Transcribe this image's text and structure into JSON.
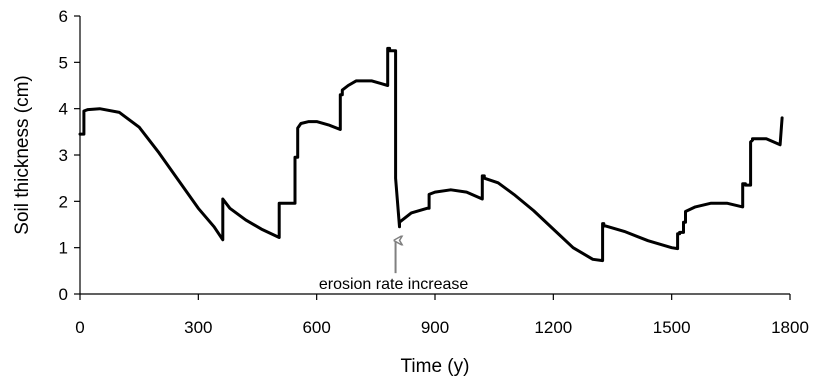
{
  "chart_data": {
    "type": "line",
    "title": "",
    "xlabel": "Time (y)",
    "ylabel": "Soil thickness (cm)",
    "xlim": [
      0,
      1800
    ],
    "ylim": [
      0,
      6
    ],
    "xticks": [
      0,
      300,
      600,
      900,
      1200,
      1500,
      1800
    ],
    "yticks": [
      0,
      1,
      2,
      3,
      4,
      5,
      6
    ],
    "grid": false,
    "legend": "none",
    "line_color": "#000000",
    "annotation": {
      "text": "erosion rate increase",
      "x": 800,
      "y": 1.2,
      "arrow_color": "#808080"
    },
    "series": [
      {
        "x": [
          0,
          10,
          10,
          20,
          50,
          100,
          150,
          200,
          250,
          300,
          340,
          362,
          362,
          380,
          420,
          460,
          505,
          505,
          520,
          545,
          545,
          552,
          552,
          560,
          580,
          600,
          630,
          660,
          660,
          665,
          665,
          680,
          700,
          740,
          780,
          780,
          785,
          785,
          800,
          800,
          810,
          810,
          840,
          880,
          880,
          885,
          885,
          900,
          940,
          980,
          1020,
          1020,
          1025,
          1025,
          1060,
          1100,
          1150,
          1200,
          1250,
          1300,
          1325,
          1325,
          1328,
          1328,
          1380,
          1440,
          1500,
          1515,
          1515,
          1520,
          1520,
          1530,
          1530,
          1535,
          1535,
          1560,
          1600,
          1640,
          1680,
          1680,
          1687,
          1687,
          1700,
          1700,
          1705,
          1705,
          1740,
          1775,
          1775,
          1780,
          1780
        ],
        "y": [
          3.45,
          3.45,
          3.95,
          3.98,
          4.0,
          3.92,
          3.6,
          3.05,
          2.45,
          1.85,
          1.45,
          1.17,
          2.05,
          1.85,
          1.6,
          1.4,
          1.22,
          1.96,
          1.96,
          1.96,
          2.95,
          2.95,
          3.58,
          3.68,
          3.72,
          3.72,
          3.65,
          3.55,
          4.3,
          4.3,
          4.4,
          4.5,
          4.6,
          4.6,
          4.5,
          5.3,
          5.3,
          5.25,
          5.25,
          2.5,
          1.45,
          1.55,
          1.75,
          1.85,
          1.85,
          1.85,
          2.15,
          2.2,
          2.25,
          2.2,
          2.05,
          2.55,
          2.55,
          2.5,
          2.4,
          2.15,
          1.8,
          1.4,
          1.0,
          0.75,
          0.72,
          1.52,
          1.52,
          1.48,
          1.35,
          1.15,
          1.0,
          0.98,
          1.3,
          1.3,
          1.33,
          1.33,
          1.55,
          1.55,
          1.78,
          1.88,
          1.96,
          1.96,
          1.88,
          2.38,
          2.38,
          2.35,
          2.35,
          3.28,
          3.32,
          3.35,
          3.35,
          3.22,
          3.22,
          3.8,
          3.8
        ]
      }
    ]
  }
}
